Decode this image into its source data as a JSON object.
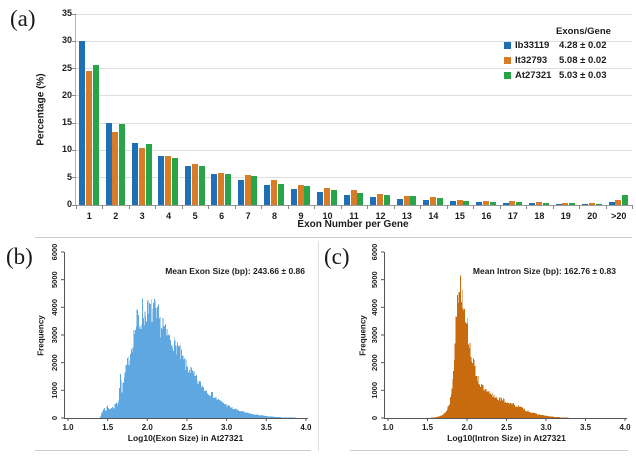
{
  "figure": {
    "panel_a_label": "(a)",
    "panel_b_label": "(b)",
    "panel_c_label": "(c)"
  },
  "chart_data": [
    {
      "id": "exon-number-bar-chart",
      "type": "bar",
      "xlabel": "Exon Number per Gene",
      "ylabel": "Percentage (%)",
      "ylim": [
        0,
        35
      ],
      "yticks": [
        0,
        5,
        10,
        15,
        20,
        25,
        30,
        35
      ],
      "grid": true,
      "legend_position": "top-right-inside",
      "legend_title": "Exons/Gene",
      "categories": [
        "1",
        "2",
        "3",
        "4",
        "5",
        "6",
        "7",
        "8",
        "9",
        "10",
        "11",
        "12",
        "13",
        "14",
        "15",
        "16",
        "17",
        "18",
        "19",
        "20",
        ">20"
      ],
      "series": [
        {
          "name": "Ib33119",
          "color": "#1F6FB4",
          "stat": "4.28 ± 0.02",
          "values": [
            30.0,
            15.1,
            11.4,
            8.9,
            7.2,
            5.7,
            4.5,
            3.7,
            2.9,
            2.3,
            1.8,
            1.4,
            1.1,
            0.9,
            0.7,
            0.5,
            0.4,
            0.3,
            0.2,
            0.15,
            0.5
          ]
        },
        {
          "name": "It32793",
          "color": "#D97C28",
          "stat": "5.08 ± 0.02",
          "values": [
            24.6,
            13.3,
            10.4,
            9.0,
            7.5,
            5.9,
            5.5,
            4.6,
            3.6,
            3.1,
            2.7,
            2.0,
            1.7,
            1.4,
            0.9,
            0.7,
            0.7,
            0.5,
            0.4,
            0.3,
            1.0
          ]
        },
        {
          "name": "At27321",
          "color": "#28A449",
          "stat": "5.03 ± 0.03",
          "values": [
            25.6,
            14.8,
            11.1,
            8.7,
            7.1,
            5.7,
            5.3,
            3.9,
            3.4,
            2.8,
            2.2,
            1.9,
            1.6,
            1.3,
            0.8,
            0.6,
            0.5,
            0.4,
            0.3,
            0.25,
            1.8
          ]
        }
      ]
    },
    {
      "id": "exon-size-histogram",
      "type": "bar",
      "subtype": "histogram",
      "annotation": "Mean Exon Size (bp): 243.66 ± 0.86",
      "xlabel": "Log10(Exon Size) in At27321",
      "ylabel": "Frequency",
      "xlim": [
        1.0,
        4.0
      ],
      "ylim": [
        0,
        6000
      ],
      "xtick_labels": [
        "1.0",
        "1.5",
        "2.0",
        "2.5",
        "3.0",
        "3.5",
        "4.0"
      ],
      "ytick_labels": [
        "0",
        "1000",
        "2000",
        "3000",
        "4000",
        "5000",
        "6000"
      ],
      "color": "#5EA7E0",
      "bin_width": 0.01,
      "envelope": [
        [
          1.4,
          0
        ],
        [
          1.44,
          250
        ],
        [
          1.46,
          380
        ],
        [
          1.48,
          260
        ],
        [
          1.5,
          500
        ],
        [
          1.52,
          300
        ],
        [
          1.54,
          360
        ],
        [
          1.56,
          420
        ],
        [
          1.58,
          360
        ],
        [
          1.6,
          560
        ],
        [
          1.62,
          500
        ],
        [
          1.64,
          720
        ],
        [
          1.66,
          1600
        ],
        [
          1.68,
          1050
        ],
        [
          1.7,
          1300
        ],
        [
          1.72,
          1600
        ],
        [
          1.74,
          1900
        ],
        [
          1.76,
          2100
        ],
        [
          1.78,
          2300
        ],
        [
          1.8,
          2600
        ],
        [
          1.82,
          2900
        ],
        [
          1.84,
          3200
        ],
        [
          1.86,
          3400
        ],
        [
          1.88,
          3800
        ],
        [
          1.9,
          3450
        ],
        [
          1.92,
          3600
        ],
        [
          1.94,
          4000
        ],
        [
          1.96,
          3700
        ],
        [
          1.98,
          3900
        ],
        [
          2.0,
          4100
        ],
        [
          2.02,
          3800
        ],
        [
          2.04,
          4050
        ],
        [
          2.06,
          3900
        ],
        [
          2.08,
          4100
        ],
        [
          2.1,
          3900
        ],
        [
          2.12,
          3600
        ],
        [
          2.14,
          3750
        ],
        [
          2.16,
          3450
        ],
        [
          2.18,
          3300
        ],
        [
          2.2,
          3500
        ],
        [
          2.22,
          3200
        ],
        [
          2.24,
          3000
        ],
        [
          2.26,
          3100
        ],
        [
          2.28,
          2900
        ],
        [
          2.3,
          2800
        ],
        [
          2.32,
          2900
        ],
        [
          2.34,
          2700
        ],
        [
          2.36,
          2600
        ],
        [
          2.38,
          2700
        ],
        [
          2.4,
          2500
        ],
        [
          2.42,
          2300
        ],
        [
          2.44,
          2200
        ],
        [
          2.46,
          2100
        ],
        [
          2.48,
          1950
        ],
        [
          2.5,
          1900
        ],
        [
          2.55,
          1750
        ],
        [
          2.6,
          1500
        ],
        [
          2.65,
          1300
        ],
        [
          2.7,
          1150
        ],
        [
          2.75,
          1000
        ],
        [
          2.8,
          900
        ],
        [
          2.85,
          780
        ],
        [
          2.9,
          660
        ],
        [
          2.95,
          560
        ],
        [
          3.0,
          470
        ],
        [
          3.05,
          400
        ],
        [
          3.1,
          330
        ],
        [
          3.15,
          280
        ],
        [
          3.2,
          230
        ],
        [
          3.25,
          195
        ],
        [
          3.3,
          160
        ],
        [
          3.35,
          135
        ],
        [
          3.4,
          110
        ],
        [
          3.45,
          90
        ],
        [
          3.5,
          70
        ],
        [
          3.55,
          55
        ],
        [
          3.6,
          45
        ],
        [
          3.65,
          35
        ],
        [
          3.7,
          28
        ],
        [
          3.75,
          22
        ],
        [
          3.8,
          16
        ],
        [
          3.85,
          10
        ],
        [
          3.9,
          5
        ]
      ]
    },
    {
      "id": "intron-size-histogram",
      "type": "bar",
      "subtype": "histogram",
      "annotation": "Mean Intron Size (bp): 162.76 ± 0.83",
      "xlabel": "Log10(Intron Size) in At27321",
      "ylabel": "Frequency",
      "xlim": [
        1.0,
        4.0
      ],
      "ylim": [
        0,
        6000
      ],
      "xtick_labels": [
        "1.0",
        "1.5",
        "2.0",
        "2.5",
        "3.0",
        "3.5",
        "4.0"
      ],
      "ytick_labels": [
        "0",
        "1000",
        "2000",
        "3000",
        "4000",
        "5000",
        "6000"
      ],
      "color": "#C76B0E",
      "bin_width": 0.01,
      "envelope": [
        [
          1.55,
          10
        ],
        [
          1.6,
          30
        ],
        [
          1.65,
          60
        ],
        [
          1.7,
          130
        ],
        [
          1.74,
          250
        ],
        [
          1.78,
          550
        ],
        [
          1.8,
          900
        ],
        [
          1.82,
          1500
        ],
        [
          1.84,
          2400
        ],
        [
          1.86,
          3400
        ],
        [
          1.88,
          4300
        ],
        [
          1.9,
          4800
        ],
        [
          1.92,
          5000
        ],
        [
          1.94,
          4700
        ],
        [
          1.96,
          4300
        ],
        [
          1.98,
          3900
        ],
        [
          2.0,
          3700
        ],
        [
          2.02,
          3000
        ],
        [
          2.04,
          2600
        ],
        [
          2.06,
          2300
        ],
        [
          2.08,
          2000
        ],
        [
          2.1,
          1800
        ],
        [
          2.12,
          1600
        ],
        [
          2.14,
          1450
        ],
        [
          2.16,
          1300
        ],
        [
          2.18,
          1200
        ],
        [
          2.2,
          1100
        ],
        [
          2.25,
          950
        ],
        [
          2.3,
          870
        ],
        [
          2.35,
          800
        ],
        [
          2.4,
          720
        ],
        [
          2.45,
          660
        ],
        [
          2.5,
          600
        ],
        [
          2.55,
          540
        ],
        [
          2.6,
          480
        ],
        [
          2.65,
          420
        ],
        [
          2.7,
          350
        ],
        [
          2.75,
          280
        ],
        [
          2.8,
          220
        ],
        [
          2.85,
          170
        ],
        [
          2.9,
          130
        ],
        [
          2.95,
          100
        ],
        [
          3.0,
          80
        ],
        [
          3.05,
          60
        ],
        [
          3.1,
          45
        ],
        [
          3.15,
          33
        ],
        [
          3.2,
          24
        ],
        [
          3.25,
          15
        ],
        [
          3.3,
          8
        ],
        [
          3.35,
          3
        ]
      ]
    }
  ]
}
